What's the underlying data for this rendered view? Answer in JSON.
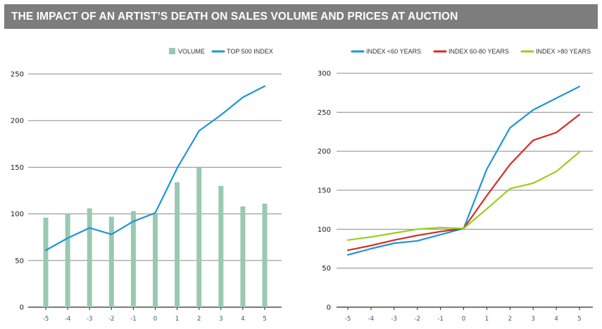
{
  "header": {
    "title": "THE IMPACT OF AN ARTIST’S DEATH ON SALES VOLUME AND PRICES AT AUCTION"
  },
  "colors": {
    "volume": "#99c9b1",
    "top500": "#1e96d6",
    "lt60": "#1e96d6",
    "b6080": "#d62a27",
    "gt80": "#9acd1e",
    "grid": "#8a8a8a",
    "axis": "#2a2a2a",
    "title_bg": "#7d7d7d"
  },
  "chart_data": [
    {
      "type": "bar+line",
      "title": "",
      "xlabel": "",
      "ylabel": "",
      "categories": [
        "-5",
        "-4",
        "-3",
        "-2",
        "-1",
        "0",
        "1",
        "2",
        "3",
        "4",
        "5"
      ],
      "yticks": [
        "0",
        "50",
        "100",
        "150",
        "200",
        "250"
      ],
      "ylim": [
        0,
        250
      ],
      "grid": true,
      "legend_position": "top-right",
      "series": [
        {
          "name": "VOLUME",
          "type": "bar",
          "color_key": "volume",
          "values": [
            96,
            100,
            106,
            97,
            103,
            100,
            134,
            150,
            130,
            108,
            111
          ]
        },
        {
          "name": "TOP 500 INDEX",
          "type": "line",
          "color_key": "top500",
          "values": [
            61,
            74,
            85,
            78,
            92,
            101,
            149,
            189,
            206,
            225,
            237
          ]
        }
      ]
    },
    {
      "type": "line",
      "title": "",
      "xlabel": "",
      "ylabel": "",
      "categories": [
        "-5",
        "-4",
        "-3",
        "-2",
        "-1",
        "0",
        "1",
        "2",
        "3",
        "4",
        "5"
      ],
      "yticks": [
        "0",
        "50",
        "100",
        "150",
        "200",
        "250",
        "300"
      ],
      "ylim": [
        0,
        300
      ],
      "grid": true,
      "legend_position": "top-right",
      "series": [
        {
          "name": "INDEX <60 YEARS",
          "color_key": "lt60",
          "values": [
            67,
            75,
            82,
            85,
            93,
            101,
            177,
            230,
            253,
            268,
            283
          ]
        },
        {
          "name": "INDEX 60-80 YEARS",
          "color_key": "b6080",
          "values": [
            73,
            79,
            86,
            92,
            97,
            101,
            143,
            183,
            214,
            224,
            247
          ]
        },
        {
          "name": "INDEX >80 YEARS",
          "color_key": "gt80",
          "values": [
            86,
            90,
            95,
            100,
            102,
            101,
            126,
            152,
            159,
            174,
            199
          ]
        }
      ]
    }
  ]
}
